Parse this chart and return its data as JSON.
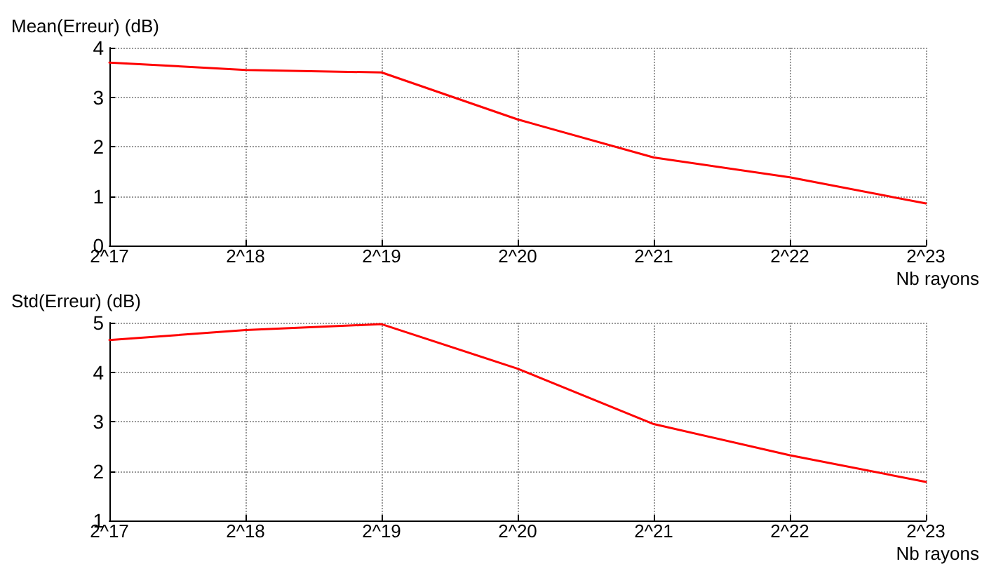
{
  "chart_data": [
    {
      "type": "line",
      "ylabel": "Mean(Erreur) (dB)",
      "xlabel": "Nb rayons",
      "categories": [
        "2^17",
        "2^18",
        "2^19",
        "2^20",
        "2^21",
        "2^22",
        "2^23"
      ],
      "series": [
        {
          "color": "#ff0000",
          "values": [
            3.7,
            3.55,
            3.5,
            2.55,
            1.78,
            1.38,
            0.85
          ]
        }
      ],
      "ylim": [
        0,
        4
      ],
      "yticks": [
        0,
        1,
        2,
        3,
        4
      ],
      "grid": true,
      "marker": "none",
      "line_style": "solid"
    },
    {
      "type": "line",
      "ylabel": "Std(Erreur) (dB)",
      "xlabel": "Nb rayons",
      "categories": [
        "2^17",
        "2^18",
        "2^19",
        "2^20",
        "2^21",
        "2^22",
        "2^23"
      ],
      "series": [
        {
          "color": "#ff0000",
          "values": [
            4.65,
            4.85,
            4.97,
            4.07,
            2.95,
            2.32,
            1.78
          ]
        }
      ],
      "ylim": [
        1,
        5
      ],
      "yticks": [
        1,
        2,
        3,
        4,
        5
      ],
      "grid": true,
      "marker": "none",
      "line_style": "solid"
    }
  ]
}
